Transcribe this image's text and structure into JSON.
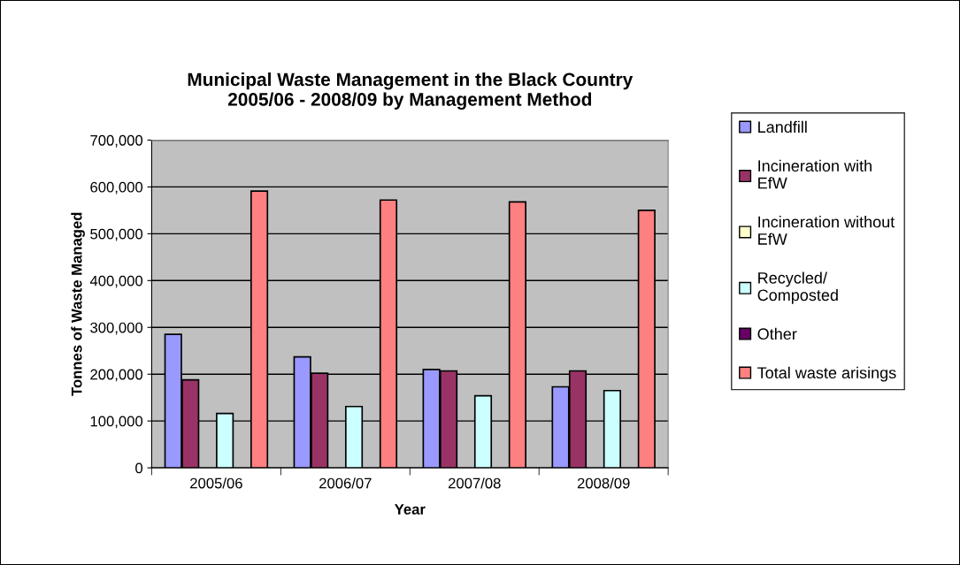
{
  "chart_data": {
    "type": "bar",
    "title": "Municipal Waste Management in the Black Country\n2005/06 - 2008/09 by Management Method",
    "xlabel": "Year",
    "ylabel": "Tonnes of Waste Managed",
    "categories": [
      "2005/06",
      "2006/07",
      "2007/08",
      "2008/09"
    ],
    "series": [
      {
        "name": "Landfill",
        "color": "#9999ff",
        "values": [
          285000,
          237000,
          210000,
          173000
        ]
      },
      {
        "name": "Incineration with\nEfW",
        "color": "#993366",
        "values": [
          188000,
          202000,
          207000,
          207000
        ]
      },
      {
        "name": "Incineration without\nEfW",
        "color": "#ffffcc",
        "values": [
          null,
          null,
          null,
          null
        ]
      },
      {
        "name": "Recycled/\nComposted",
        "color": "#ccffff",
        "values": [
          116000,
          131000,
          154000,
          165000
        ]
      },
      {
        "name": "Other",
        "color": "#660066",
        "values": [
          null,
          null,
          null,
          null
        ]
      },
      {
        "name": "Total waste arisings",
        "color": "#ff8080",
        "values": [
          591000,
          572000,
          568000,
          550000
        ]
      }
    ],
    "ylim": [
      0,
      700000
    ],
    "yticks": [
      {
        "value": 0,
        "label": "0"
      },
      {
        "value": 100000,
        "label": "100,000"
      },
      {
        "value": 200000,
        "label": "200,000"
      },
      {
        "value": 300000,
        "label": "300,000"
      },
      {
        "value": 400000,
        "label": "400,000"
      },
      {
        "value": 500000,
        "label": "500,000"
      },
      {
        "value": 600000,
        "label": "600,000"
      },
      {
        "value": 700000,
        "label": "700,000"
      }
    ],
    "grid": "y",
    "legend": "right"
  }
}
